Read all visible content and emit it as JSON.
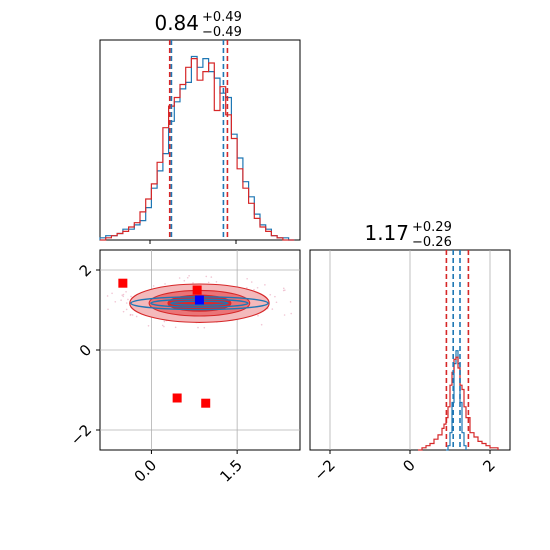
{
  "chart_data": [
    {
      "type": "histogram",
      "panel": "top-left",
      "title": {
        "value": "0.84",
        "plus": "+0.49",
        "minus": "−0.49"
      },
      "xlim": [
        -0.9,
        2.6
      ],
      "quantile_lines": {
        "blue": [
          0.35,
          1.26
        ],
        "red": [
          0.32,
          1.33
        ]
      },
      "series": [
        {
          "color": "#1f77b4",
          "bins_x": [
            -0.9,
            -0.8,
            -0.7,
            -0.6,
            -0.5,
            -0.4,
            -0.3,
            -0.2,
            -0.1,
            0.0,
            0.1,
            0.2,
            0.3,
            0.4,
            0.5,
            0.6,
            0.7,
            0.8,
            0.9,
            1.0,
            1.1,
            1.2,
            1.3,
            1.4,
            1.5,
            1.6,
            1.7,
            1.8,
            1.9,
            2.0,
            2.1,
            2.2,
            2.3,
            2.4,
            2.5
          ],
          "heights": [
            0.01,
            0.02,
            0.02,
            0.03,
            0.05,
            0.05,
            0.07,
            0.09,
            0.15,
            0.24,
            0.32,
            0.4,
            0.55,
            0.64,
            0.7,
            0.73,
            0.85,
            0.8,
            0.84,
            0.78,
            0.75,
            0.68,
            0.66,
            0.49,
            0.38,
            0.27,
            0.2,
            0.12,
            0.07,
            0.05,
            0.02,
            0.01,
            0.01,
            0.0
          ]
        },
        {
          "color": "#d62728",
          "bins_x": [
            -0.9,
            -0.8,
            -0.7,
            -0.6,
            -0.5,
            -0.4,
            -0.3,
            -0.2,
            -0.1,
            0.0,
            0.1,
            0.2,
            0.3,
            0.4,
            0.5,
            0.6,
            0.7,
            0.8,
            0.9,
            1.0,
            1.1,
            1.2,
            1.3,
            1.4,
            1.5,
            1.6,
            1.7,
            1.8,
            1.9,
            2.0,
            2.1,
            2.2,
            2.3,
            2.4,
            2.5
          ],
          "heights": [
            0.0,
            0.01,
            0.02,
            0.03,
            0.04,
            0.06,
            0.08,
            0.13,
            0.19,
            0.26,
            0.36,
            0.52,
            0.62,
            0.66,
            0.72,
            0.8,
            0.84,
            0.74,
            0.78,
            0.82,
            0.6,
            0.71,
            0.58,
            0.47,
            0.33,
            0.24,
            0.17,
            0.1,
            0.06,
            0.04,
            0.02,
            0.01,
            0.0,
            0.0
          ]
        }
      ]
    },
    {
      "type": "scatter-contour",
      "panel": "bottom-left",
      "xlim": [
        -0.9,
        2.6
      ],
      "ylim": [
        -2.5,
        2.5
      ],
      "xticks": [
        0.0,
        1.5
      ],
      "xtick_labels": [
        "0.0",
        "1.5"
      ],
      "yticks": [
        -2,
        0,
        2
      ],
      "ytick_labels": [
        "−2",
        "0",
        "2"
      ],
      "grid": true,
      "contours": {
        "center": [
          0.84,
          1.17
        ],
        "red_filled": [
          {
            "rx": 1.22,
            "ry": 0.48
          },
          {
            "rx": 0.88,
            "ry": 0.32
          },
          {
            "rx": 0.55,
            "ry": 0.2
          }
        ],
        "blue_lines": [
          {
            "rx": 1.2,
            "ry": 0.16
          },
          {
            "rx": 0.85,
            "ry": 0.1
          },
          {
            "rx": 0.5,
            "ry": 0.05
          }
        ]
      },
      "points": {
        "red_squares": [
          [
            -0.5,
            1.67
          ],
          [
            0.8,
            1.5
          ],
          [
            0.45,
            -1.2
          ],
          [
            0.95,
            -1.33
          ]
        ],
        "blue_square": [
          0.84,
          1.25
        ]
      }
    },
    {
      "type": "histogram",
      "panel": "bottom-right",
      "title": {
        "value": "1.17",
        "plus": "+0.29",
        "minus": "−0.26"
      },
      "xlim": [
        -2.5,
        2.5
      ],
      "xticks": [
        -2,
        0,
        2
      ],
      "xtick_labels": [
        "−2",
        "0",
        "2"
      ],
      "grid": true,
      "quantile_lines": {
        "blue": [
          1.08,
          1.25
        ],
        "red": [
          0.91,
          1.46
        ]
      },
      "series": [
        {
          "color": "#1f77b4",
          "bins_x": [
            0.9,
            0.95,
            1.0,
            1.05,
            1.1,
            1.15,
            1.2,
            1.25,
            1.3,
            1.35,
            1.4
          ],
          "heights": [
            0.0,
            0.02,
            0.08,
            0.22,
            0.4,
            0.46,
            0.4,
            0.22,
            0.08,
            0.02,
            0.0
          ]
        },
        {
          "color": "#d62728",
          "bins_x": [
            0.2,
            0.3,
            0.4,
            0.5,
            0.6,
            0.7,
            0.8,
            0.85,
            0.9,
            0.95,
            1.0,
            1.05,
            1.1,
            1.15,
            1.2,
            1.25,
            1.3,
            1.35,
            1.4,
            1.5,
            1.6,
            1.7,
            1.8,
            1.9,
            2.0,
            2.2
          ],
          "heights": [
            0.0,
            0.01,
            0.02,
            0.03,
            0.05,
            0.07,
            0.1,
            0.12,
            0.15,
            0.2,
            0.3,
            0.36,
            0.42,
            0.43,
            0.38,
            0.3,
            0.28,
            0.2,
            0.15,
            0.08,
            0.06,
            0.04,
            0.03,
            0.02,
            0.01,
            0.0
          ]
        }
      ]
    }
  ]
}
